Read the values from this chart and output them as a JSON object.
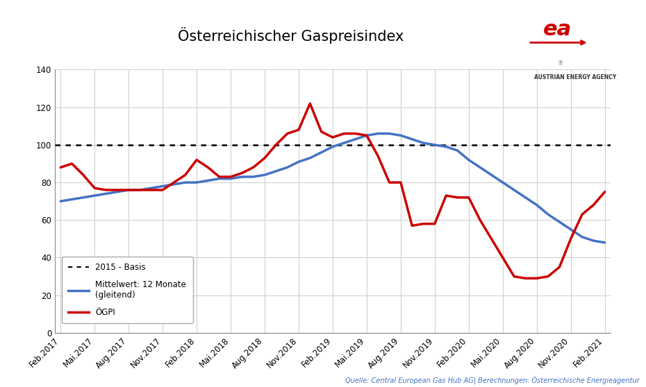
{
  "title": "Österreichischer Gaspreisindex",
  "source_text": "Quelle: Central European Gas Hub AG| Berechnungen: Österreichische Energieagentur",
  "ylim": [
    0,
    140
  ],
  "yticks": [
    0,
    20,
    40,
    60,
    80,
    100,
    120,
    140
  ],
  "baseline": 100,
  "x_labels": [
    "Feb.2017",
    "Mai.2017",
    "Aug.2017",
    "Nov.2017",
    "Feb.2018",
    "Mai.2018",
    "Aug.2018",
    "Nov.2018",
    "Feb.2019",
    "Mai.2019",
    "Aug.2019",
    "Nov.2019",
    "Feb.2020",
    "Mai.2020",
    "Aug.2020",
    "Nov.2020",
    "Feb.2021"
  ],
  "ogpi_color": "#CC0000",
  "mittel_color": "#4472C4",
  "baseline_color": "#000000",
  "background_color": "#FFFFFF",
  "grid_color": "#D0D0D0",
  "title_fontsize": 15,
  "tick_fontsize": 8.5,
  "source_fontsize": 7,
  "ogpi_x": [
    0,
    1,
    2,
    3,
    4,
    5,
    6,
    7,
    8,
    9,
    10,
    11,
    12,
    13,
    14,
    15,
    16,
    17,
    18,
    19,
    20,
    21,
    22,
    23,
    24,
    25,
    26,
    27,
    28,
    29,
    30,
    31,
    32,
    33,
    34,
    35,
    36,
    37,
    38,
    39,
    40,
    41,
    42,
    43,
    44,
    45,
    46,
    47,
    48
  ],
  "ogpi_y": [
    88,
    90,
    84,
    77,
    76,
    76,
    76,
    76,
    76,
    76,
    80,
    84,
    92,
    88,
    83,
    83,
    85,
    88,
    93,
    100,
    106,
    108,
    122,
    107,
    104,
    106,
    106,
    105,
    94,
    80,
    80,
    57,
    58,
    58,
    73,
    72,
    72,
    60,
    50,
    40,
    30,
    29,
    29,
    30,
    35,
    50,
    63,
    68,
    75
  ],
  "mittel_x": [
    0,
    1,
    2,
    3,
    4,
    5,
    6,
    7,
    8,
    9,
    10,
    11,
    12,
    13,
    14,
    15,
    16,
    17,
    18,
    19,
    20,
    21,
    22,
    23,
    24,
    25,
    26,
    27,
    28,
    29,
    30,
    31,
    32,
    33,
    34,
    35,
    36,
    37,
    38,
    39,
    40,
    41,
    42,
    43,
    44,
    45,
    46,
    47,
    48
  ],
  "mittel_y": [
    70,
    71,
    72,
    73,
    74,
    75,
    76,
    76,
    77,
    78,
    79,
    80,
    80,
    81,
    82,
    82,
    83,
    83,
    84,
    86,
    88,
    91,
    93,
    96,
    99,
    101,
    103,
    105,
    106,
    106,
    105,
    103,
    101,
    100,
    99,
    97,
    92,
    88,
    84,
    80,
    76,
    72,
    68,
    63,
    59,
    55,
    51,
    49,
    48
  ]
}
